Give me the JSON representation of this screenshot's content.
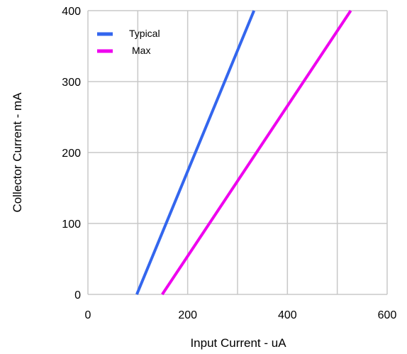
{
  "chart_data": {
    "type": "line",
    "xlabel": "Input Current - uA",
    "ylabel": "Collector Current - mA",
    "xlim": [
      0,
      600
    ],
    "ylim": [
      0,
      400
    ],
    "x_ticks": [
      0,
      200,
      400,
      600
    ],
    "y_ticks": [
      0,
      100,
      200,
      300,
      400
    ],
    "x_grid_step": 100,
    "y_grid_step": 100,
    "grid": true,
    "legend_position": "top-left",
    "series": [
      {
        "name": "Typical",
        "color": "#3366ee",
        "x": [
          98,
          333
        ],
        "y": [
          0,
          400
        ]
      },
      {
        "name": "Max",
        "color": "#ee00ee",
        "x": [
          149,
          527
        ],
        "y": [
          0,
          400
        ]
      }
    ]
  }
}
